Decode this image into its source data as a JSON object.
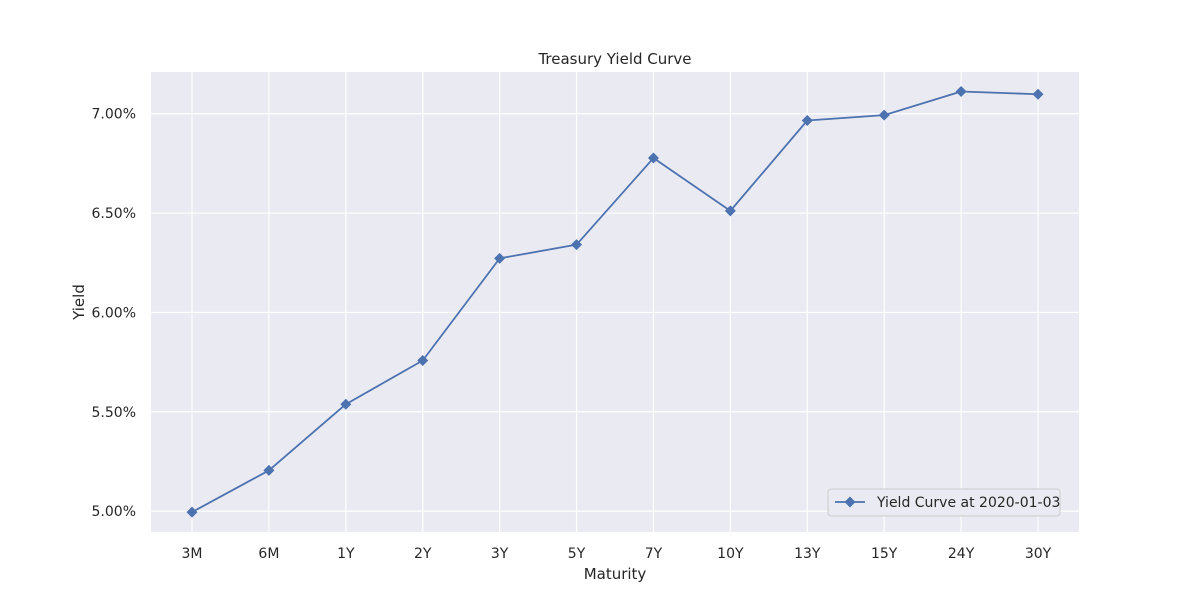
{
  "chart_data": {
    "type": "line",
    "title": "Treasury Yield Curve",
    "xlabel": "Maturity",
    "ylabel": "Yield",
    "categories": [
      "3M",
      "6M",
      "1Y",
      "2Y",
      "3Y",
      "5Y",
      "7Y",
      "10Y",
      "13Y",
      "15Y",
      "24Y",
      "30Y"
    ],
    "series": [
      {
        "name": "Yield Curve at 2020-01-03",
        "values": [
          4.995,
          5.205,
          5.538,
          5.758,
          6.272,
          6.341,
          6.777,
          6.511,
          6.966,
          6.993,
          7.112,
          7.098
        ],
        "marker": "diamond",
        "color": "#4c72b0"
      }
    ],
    "ylim": [
      4.895,
      7.21
    ],
    "yticks": [
      5.0,
      5.5,
      6.0,
      6.5,
      7.0
    ],
    "ytick_labels": [
      "5.00%",
      "5.50%",
      "6.00%",
      "6.50%",
      "7.00%"
    ],
    "grid": true,
    "legend_position": "lower-right",
    "plot_background": "#eaeaf2",
    "grid_color": "#ffffff"
  }
}
